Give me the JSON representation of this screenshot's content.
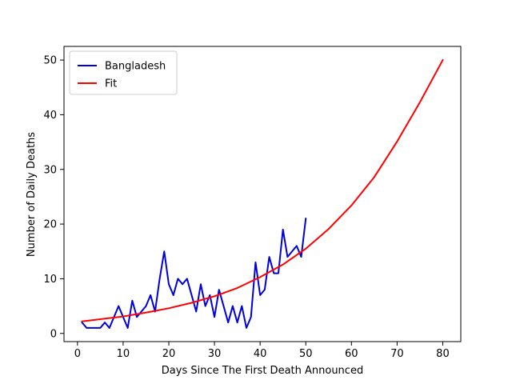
{
  "chart_data": {
    "type": "line",
    "title": "",
    "xlabel": "Days Since The First Death Announced",
    "ylabel": "Number of Daily Deaths",
    "xlim": [
      -2.95,
      83.95
    ],
    "ylim": [
      -1.5,
      52.5
    ],
    "xticks": [
      0,
      10,
      20,
      30,
      40,
      50,
      60,
      70,
      80
    ],
    "yticks": [
      0,
      10,
      20,
      30,
      40,
      50
    ],
    "grid": false,
    "legend_position": "upper-left",
    "series": [
      {
        "name": "Bangladesh",
        "color": "#0000dd",
        "x": [
          1,
          2,
          3,
          4,
          5,
          6,
          7,
          8,
          9,
          10,
          11,
          12,
          13,
          14,
          15,
          16,
          17,
          18,
          19,
          20,
          21,
          22,
          23,
          24,
          25,
          26,
          27,
          28,
          29,
          30,
          31,
          32,
          33,
          34,
          35,
          36,
          37,
          38,
          39,
          40,
          41,
          42,
          43,
          44,
          45,
          46,
          47,
          48,
          49,
          50
        ],
        "y": [
          2,
          1,
          1,
          1,
          1,
          2,
          1,
          3,
          5,
          3,
          1,
          6,
          3,
          4,
          5,
          7,
          4,
          10,
          15,
          9,
          7,
          10,
          9,
          10,
          7,
          4,
          9,
          5,
          7,
          3,
          8,
          5,
          2,
          5,
          2,
          5,
          1,
          3,
          13,
          7,
          8,
          14,
          11,
          11,
          19,
          14,
          15,
          16,
          14,
          21
        ]
      },
      {
        "name": "Fit",
        "color": "#ff0000",
        "x": [
          1,
          5,
          10,
          15,
          20,
          25,
          30,
          35,
          40,
          45,
          50,
          55,
          60,
          65,
          70,
          75,
          80
        ],
        "y": [
          2.2,
          2.6,
          3.1,
          3.8,
          4.6,
          5.6,
          6.8,
          8.3,
          10.3,
          12.6,
          15.5,
          19.1,
          23.4,
          28.6,
          35.1,
          42.3,
          50.0
        ]
      }
    ]
  }
}
